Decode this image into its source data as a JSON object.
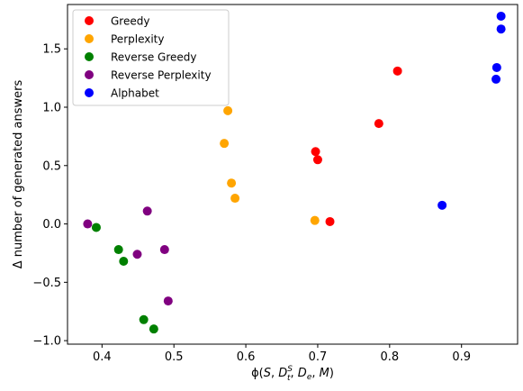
{
  "chart_data": {
    "type": "scatter",
    "title": "",
    "xlabel": "ϕ(S, D_t^S, D_e, M)",
    "ylabel": "Δ number of generated answers",
    "xlim": [
      0.352,
      0.978
    ],
    "ylim": [
      -1.03,
      1.88
    ],
    "xticks": [
      "0.4",
      "0.5",
      "0.6",
      "0.7",
      "0.8",
      "0.9"
    ],
    "yticks": [
      "−1.0",
      "−0.5",
      "0.0",
      "0.5",
      "1.0",
      "1.5"
    ],
    "grid": false,
    "legend_position": "top-left",
    "series": [
      {
        "name": "Greedy",
        "color": "#ff0000",
        "points": [
          [
            0.811,
            1.31
          ],
          [
            0.785,
            0.86
          ],
          [
            0.697,
            0.62
          ],
          [
            0.7,
            0.55
          ],
          [
            0.717,
            0.02
          ]
        ]
      },
      {
        "name": "Perplexity",
        "color": "#ffa500",
        "points": [
          [
            0.575,
            0.97
          ],
          [
            0.57,
            0.69
          ],
          [
            0.58,
            0.35
          ],
          [
            0.585,
            0.22
          ],
          [
            0.696,
            0.03
          ]
        ]
      },
      {
        "name": "Reverse Greedy",
        "color": "#008000",
        "points": [
          [
            0.392,
            -0.03
          ],
          [
            0.423,
            -0.22
          ],
          [
            0.43,
            -0.32
          ],
          [
            0.458,
            -0.82
          ],
          [
            0.472,
            -0.9
          ]
        ]
      },
      {
        "name": "Reverse Perplexity",
        "color": "#800080",
        "points": [
          [
            0.38,
            0.0
          ],
          [
            0.463,
            0.11
          ],
          [
            0.449,
            -0.26
          ],
          [
            0.487,
            -0.22
          ],
          [
            0.492,
            -0.66
          ]
        ]
      },
      {
        "name": "Alphabet",
        "color": "#0000ff",
        "points": [
          [
            0.955,
            1.78
          ],
          [
            0.955,
            1.67
          ],
          [
            0.949,
            1.34
          ],
          [
            0.948,
            1.24
          ],
          [
            0.873,
            0.16
          ]
        ]
      }
    ]
  }
}
